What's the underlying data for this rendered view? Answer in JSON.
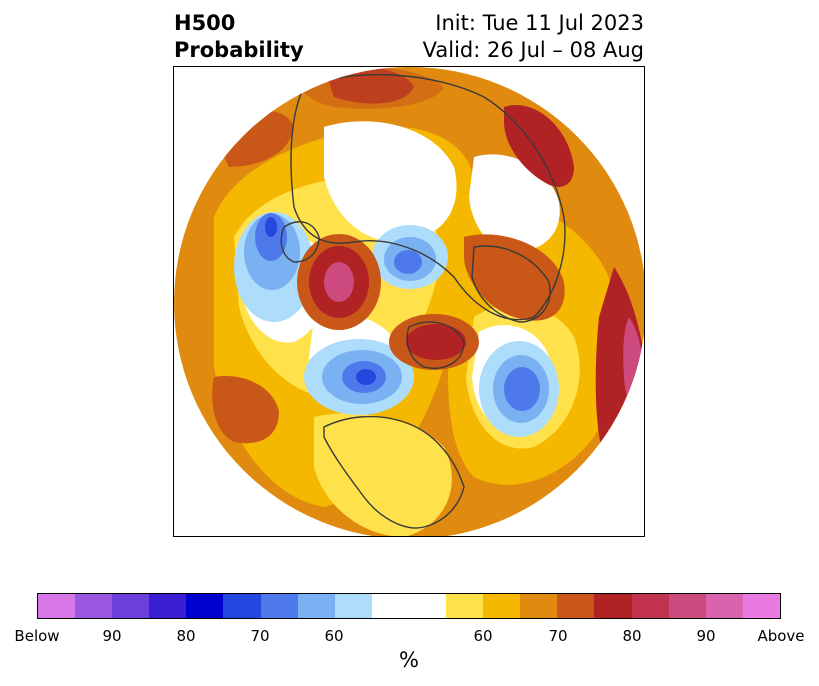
{
  "title": {
    "left_line1": "H500",
    "left_line2": "Probability",
    "right_line1": "Init: Tue 11 Jul 2023",
    "right_line2": "Valid: 26 Jul – 08 Aug"
  },
  "colorbar": {
    "unit": "%",
    "tick_labels": [
      "Below",
      "90",
      "80",
      "70",
      "60",
      "60",
      "70",
      "80",
      "90",
      "Above"
    ],
    "colors": [
      "#d877e8",
      "#9a58e2",
      "#6b3fdc",
      "#3a1fd4",
      "#0000cc",
      "#2546df",
      "#4e79ea",
      "#79b1f3",
      "#aedcfb",
      "#ffffff",
      "#ffe24b",
      "#f4b800",
      "#e08a10",
      "#c85718",
      "#b02224",
      "#c2334f",
      "#cc4a7d",
      "#da63ad",
      "#e97ae2"
    ]
  },
  "map": {
    "projection": "north-polar-stereographic",
    "colors": {
      "ocean_orange": "#e08a10",
      "dark_orange": "#c85718",
      "gold": "#f4b800",
      "yellow": "#ffe24b",
      "red": "#b02224",
      "magenta": "#cc4a7d",
      "light_blue": "#aedcfb",
      "mid_blue": "#79b1f3",
      "blue": "#4e79ea",
      "deep_blue": "#2546df",
      "coast": "#3a3a3a"
    }
  }
}
